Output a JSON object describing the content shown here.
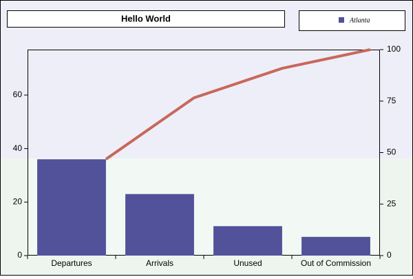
{
  "chart_data": {
    "type": "pareto",
    "title": "Hello World",
    "categories": [
      "Departures",
      "Arrivals",
      "Unused",
      "Out of Commission"
    ],
    "series": [
      {
        "name": "Atlanta",
        "type": "bar",
        "color": "#52529a",
        "values": [
          36,
          23,
          11,
          7
        ]
      },
      {
        "type": "line",
        "axis": "y2",
        "color": "#c8685a",
        "values": [
          46.8,
          76.6,
          90.9,
          100
        ]
      }
    ],
    "ylim": [
      0,
      77
    ],
    "yticks": [
      0,
      20,
      40,
      60
    ],
    "y2lim": [
      0,
      100
    ],
    "y2ticks": [
      0,
      25,
      50,
      75,
      100
    ]
  }
}
